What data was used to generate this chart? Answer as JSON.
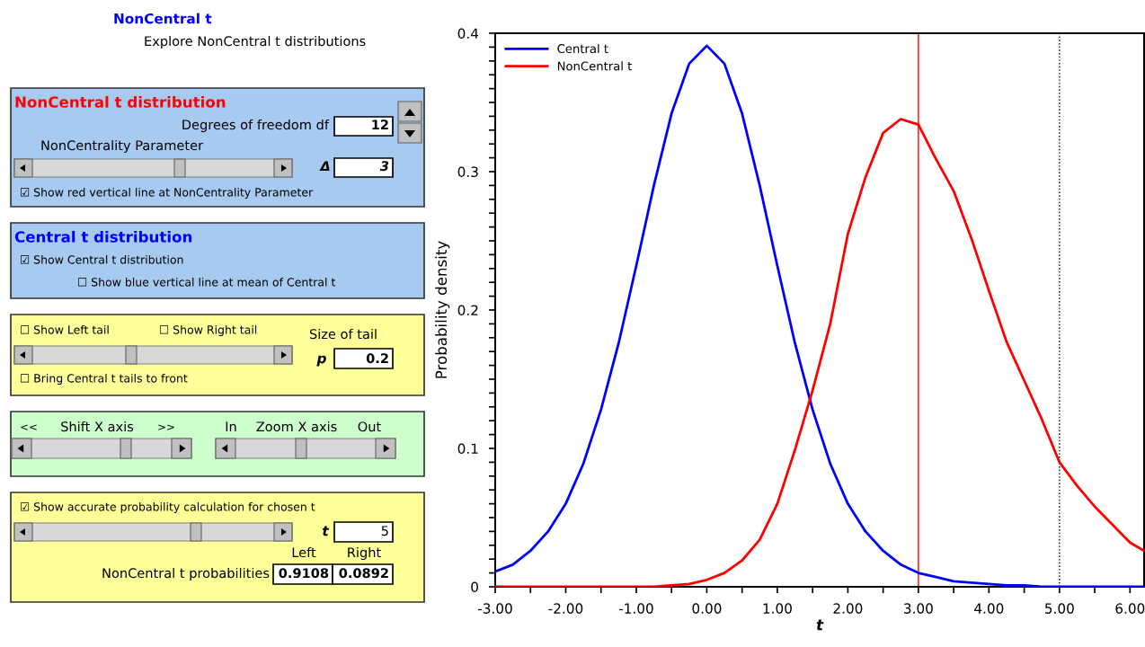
{
  "chart_data": [
    {
      "type": "other",
      "title": "NonCentral t",
      "subtitle": "Explore NonCentral t distributions",
      "annotations": [
        "NonCentral t distribution",
        "Degrees of freedom df",
        "12",
        "NonCentrality Parameter",
        "Δ",
        "3",
        "☑ Show red vertical line at NonCentrality Parameter",
        "Central t distribution",
        "☑ Show Central t distribution",
        "☐ Show blue vertical line at mean of Central t",
        "☐ Show Left tail",
        "☐ Show Right tail",
        "Size of tail",
        "p",
        "0.2",
        "☐ Bring Central t tails to front",
        "<<",
        "Shift X axis",
        ">>",
        "In",
        "Zoom X axis",
        "Out",
        "☑ Show accurate probability calculation for chosen t",
        "t",
        "5",
        "Left",
        "Right",
        "NonCentral t probabilities",
        "0.9108",
        "0.0892"
      ]
    },
    {
      "type": "line",
      "xlabel": "t",
      "ylabel": "Probability density",
      "legend": "top left",
      "grid": false,
      "x": [
        -3,
        -2.75,
        -2.5,
        -2.25,
        -2,
        -1.75,
        -1.5,
        -1.25,
        -1,
        -0.75,
        -0.5,
        -0.25,
        0,
        0.25,
        0.5,
        0.75,
        1,
        1.25,
        1.5,
        1.75,
        2,
        2.25,
        2.5,
        2.75,
        3,
        3.25,
        3.5,
        3.75,
        4,
        4.25,
        4.5,
        4.75,
        5,
        5.25,
        5.5,
        5.75,
        6,
        6.2
      ],
      "series": [
        {
          "name": "Central t",
          "color": "#0000ff",
          "values": [
            0.011,
            0.016,
            0.026,
            0.04,
            0.06,
            0.089,
            0.128,
            0.176,
            0.232,
            0.29,
            0.342,
            0.378,
            0.391,
            0.378,
            0.342,
            0.29,
            0.232,
            0.176,
            0.128,
            0.089,
            0.06,
            0.04,
            0.026,
            0.016,
            0.01,
            0.007,
            0.004,
            0.003,
            0.002,
            0.001,
            0.001,
            0,
            0,
            0,
            0,
            0,
            0,
            0
          ]
        },
        {
          "name": "NonCentral t",
          "color": "#ff0000",
          "values": [
            0,
            0,
            0,
            0,
            0,
            0,
            0,
            0,
            0,
            0,
            0.001,
            0.002,
            0.005,
            0.01,
            0.019,
            0.034,
            0.06,
            0.099,
            0.142,
            0.19,
            0.255,
            0.296,
            0.328,
            0.338,
            0.334,
            0.309,
            0.286,
            0.252,
            0.214,
            0.177,
            0.149,
            0.121,
            0.09,
            0.073,
            0.058,
            0.045,
            0.032,
            0.026
          ]
        }
      ],
      "xlim": [
        -3,
        6.2
      ],
      "ylim": [
        0,
        0.4
      ],
      "xticks": [
        {
          "value": -3,
          "label": "-3.00"
        },
        {
          "value": -2.5,
          "label": null
        },
        {
          "value": -2,
          "label": "-2.00"
        },
        {
          "value": -1.5,
          "label": null
        },
        {
          "value": -1,
          "label": "-1.00"
        },
        {
          "value": -0.5,
          "label": null
        },
        {
          "value": 0,
          "label": "0.00"
        },
        {
          "value": 0.5,
          "label": null
        },
        {
          "value": 1,
          "label": "1.00"
        },
        {
          "value": 1.5,
          "label": null
        },
        {
          "value": 2,
          "label": "2.00"
        },
        {
          "value": 2.5,
          "label": null
        },
        {
          "value": 3,
          "label": "3.00"
        },
        {
          "value": 3.5,
          "label": null
        },
        {
          "value": 4,
          "label": "4.00"
        },
        {
          "value": 4.5,
          "label": null
        },
        {
          "value": 5,
          "label": "5.00"
        },
        {
          "value": 5.5,
          "label": null
        },
        {
          "value": 6,
          "label": "6.00"
        }
      ],
      "yticks": [
        0,
        {
          "value": 0.01,
          "label": null
        },
        {
          "value": 0.02,
          "label": null
        },
        {
          "value": 0.03,
          "label": null
        },
        {
          "value": 0.04,
          "label": null
        },
        {
          "value": 0.05,
          "label": null
        },
        {
          "value": 0.06,
          "label": null
        },
        {
          "value": 0.07,
          "label": null
        },
        {
          "value": 0.08,
          "label": null
        },
        {
          "value": 0.09,
          "label": null
        },
        0.1,
        {
          "value": 0.11,
          "label": null
        },
        {
          "value": 0.12,
          "label": null
        },
        {
          "value": 0.13,
          "label": null
        },
        {
          "value": 0.14,
          "label": null
        },
        {
          "value": 0.15,
          "label": null
        },
        {
          "value": 0.16,
          "label": null
        },
        {
          "value": 0.17,
          "label": null
        },
        {
          "value": 0.18,
          "label": null
        },
        {
          "value": 0.19,
          "label": null
        },
        0.2,
        {
          "value": 0.21,
          "label": null
        },
        {
          "value": 0.22,
          "label": null
        },
        {
          "value": 0.23,
          "label": null
        },
        {
          "value": 0.24,
          "label": null
        },
        {
          "value": 0.25,
          "label": null
        },
        {
          "value": 0.26,
          "label": null
        },
        {
          "value": 0.27,
          "label": null
        },
        {
          "value": 0.28,
          "label": null
        },
        {
          "value": 0.29,
          "label": null
        },
        0.3,
        {
          "value": 0.31,
          "label": null
        },
        {
          "value": 0.32,
          "label": null
        },
        {
          "value": 0.33,
          "label": null
        },
        {
          "value": 0.34,
          "label": null
        },
        {
          "value": 0.35,
          "label": null
        },
        {
          "value": 0.36,
          "label": null
        },
        {
          "value": 0.37,
          "label": null
        },
        {
          "value": 0.38,
          "label": null
        },
        {
          "value": 0.39,
          "label": null
        },
        0.4
      ],
      "ref_lines": [
        {
          "axis": "x",
          "value": 3,
          "color": "#ff0000",
          "line_style": "solid"
        },
        {
          "axis": "x",
          "value": 5,
          "color": "#000000",
          "line_style": "dotted"
        }
      ]
    }
  ]
}
